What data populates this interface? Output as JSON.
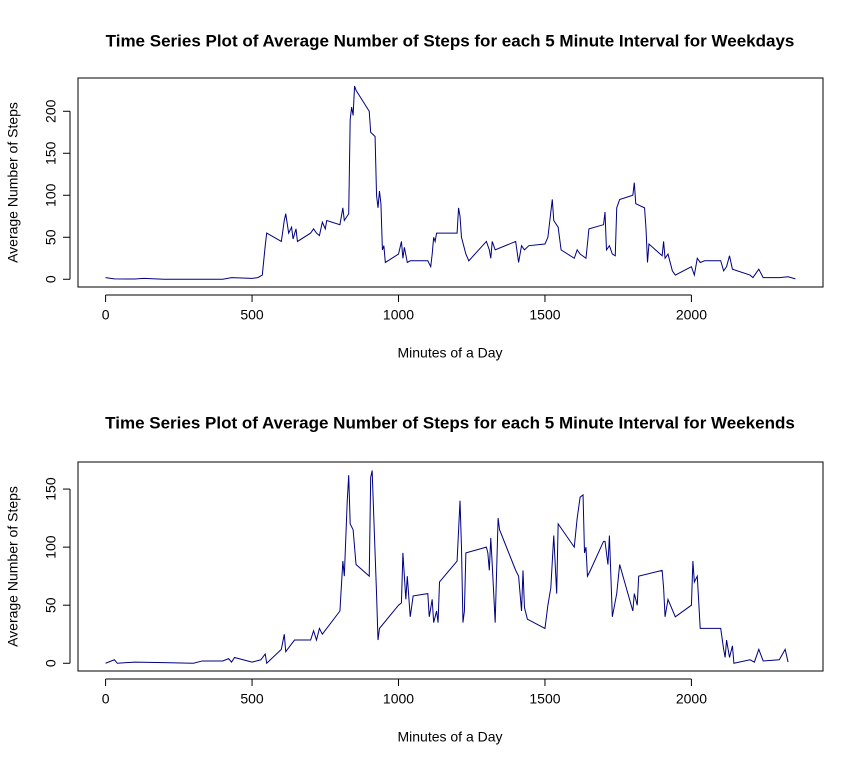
{
  "chart_data": [
    {
      "type": "line",
      "title": "Time Series Plot of Average Number of Steps for each 5 Minute Interval for Weekdays",
      "xlabel": "Minutes of a Day",
      "ylabel": "Average Number of Steps",
      "color": "#000080",
      "xlim": [
        -94.2,
        2449.2
      ],
      "xticks": [
        0,
        500,
        1000,
        1500,
        2000
      ],
      "ylim": [
        -9.2,
        239.6
      ],
      "yticks": [
        0,
        50,
        100,
        150,
        200
      ],
      "x": [
        0,
        30,
        100,
        130,
        200,
        300,
        400,
        430,
        500,
        520,
        535,
        545,
        550,
        600,
        610,
        615,
        625,
        635,
        640,
        650,
        655,
        700,
        710,
        720,
        730,
        740,
        750,
        755,
        800,
        810,
        815,
        830,
        835,
        840,
        845,
        850,
        855,
        900,
        905,
        920,
        925,
        930,
        935,
        940,
        945,
        950,
        955,
        1000,
        1010,
        1015,
        1020,
        1030,
        1040,
        1100,
        1110,
        1115,
        1120,
        1125,
        1130,
        1200,
        1205,
        1210,
        1215,
        1230,
        1240,
        1300,
        1310,
        1315,
        1320,
        1330,
        1400,
        1410,
        1420,
        1430,
        1445,
        1500,
        1510,
        1520,
        1525,
        1530,
        1545,
        1555,
        1600,
        1610,
        1620,
        1640,
        1645,
        1650,
        1700,
        1705,
        1710,
        1720,
        1730,
        1740,
        1745,
        1755,
        1800,
        1805,
        1810,
        1840,
        1845,
        1850,
        1855,
        1900,
        1905,
        1910,
        1920,
        1935,
        1945,
        2000,
        2010,
        2020,
        2030,
        2045,
        2100,
        2110,
        2120,
        2130,
        2140,
        2200,
        2210,
        2230,
        2245,
        2300,
        2330,
        2355
      ],
      "values": [
        2,
        0.5,
        0.3,
        1,
        0,
        0,
        0,
        2,
        1,
        2,
        5,
        40,
        55,
        45,
        70,
        78,
        55,
        62,
        48,
        60,
        45,
        55,
        60,
        55,
        52,
        68,
        60,
        70,
        65,
        85,
        70,
        78,
        190,
        205,
        195,
        230,
        225,
        200,
        175,
        170,
        100,
        85,
        105,
        90,
        35,
        40,
        20,
        30,
        45,
        25,
        38,
        20,
        22,
        22,
        15,
        30,
        50,
        45,
        55,
        55,
        85,
        75,
        50,
        30,
        22,
        45,
        35,
        25,
        45,
        35,
        45,
        20,
        40,
        35,
        40,
        42,
        50,
        80,
        95,
        70,
        62,
        35,
        25,
        35,
        30,
        25,
        42,
        60,
        65,
        80,
        35,
        40,
        30,
        28,
        85,
        95,
        100,
        115,
        90,
        85,
        60,
        20,
        42,
        28,
        45,
        25,
        30,
        10,
        5,
        15,
        5,
        25,
        20,
        22,
        22,
        10,
        15,
        28,
        12,
        5,
        2,
        12,
        2,
        2,
        3,
        0.5
      ]
    },
    {
      "type": "line",
      "title": "Time Series Plot of Average Number of Steps for each 5 Minute Interval for Weekends",
      "xlabel": "Minutes of a Day",
      "ylabel": "Average Number of Steps",
      "color": "#000080",
      "xlim": [
        -94.2,
        2449.2
      ],
      "xticks": [
        0,
        500,
        1000,
        1500,
        2000
      ],
      "ylim": [
        -6.66,
        173.3
      ],
      "yticks": [
        0,
        50,
        100,
        150
      ],
      "x": [
        0,
        30,
        40,
        100,
        200,
        300,
        330,
        400,
        420,
        430,
        440,
        500,
        530,
        545,
        550,
        600,
        610,
        615,
        630,
        645,
        700,
        710,
        720,
        730,
        740,
        800,
        810,
        815,
        825,
        830,
        835,
        845,
        855,
        900,
        905,
        910,
        915,
        925,
        930,
        935,
        1000,
        1010,
        1015,
        1025,
        1030,
        1040,
        1050,
        1100,
        1105,
        1115,
        1120,
        1130,
        1135,
        1140,
        1200,
        1210,
        1215,
        1220,
        1225,
        1230,
        1300,
        1305,
        1310,
        1315,
        1320,
        1330,
        1340,
        1345,
        1400,
        1410,
        1420,
        1425,
        1430,
        1440,
        1500,
        1510,
        1520,
        1530,
        1540,
        1545,
        1600,
        1610,
        1620,
        1630,
        1635,
        1640,
        1645,
        1655,
        1700,
        1705,
        1715,
        1720,
        1730,
        1745,
        1755,
        1800,
        1805,
        1815,
        1820,
        1900,
        1905,
        1910,
        1920,
        1945,
        2000,
        2005,
        2010,
        2020,
        2030,
        2045,
        2100,
        2110,
        2115,
        2120,
        2130,
        2140,
        2145,
        2200,
        2215,
        2230,
        2245,
        2300,
        2320,
        2330
      ],
      "values": [
        0,
        3,
        0,
        1,
        0.5,
        0,
        2,
        2,
        4,
        1,
        5,
        1,
        3,
        8,
        0,
        12,
        25,
        10,
        15,
        20,
        20,
        28,
        20,
        30,
        25,
        45,
        88,
        75,
        140,
        162,
        120,
        115,
        85,
        75,
        160,
        166,
        130,
        60,
        20,
        30,
        50,
        52,
        95,
        55,
        75,
        40,
        58,
        60,
        40,
        55,
        35,
        45,
        35,
        70,
        88,
        140,
        100,
        35,
        45,
        95,
        100,
        95,
        80,
        108,
        85,
        35,
        125,
        115,
        80,
        75,
        45,
        80,
        48,
        38,
        30,
        50,
        65,
        110,
        60,
        120,
        100,
        125,
        143,
        145,
        95,
        100,
        75,
        80,
        105,
        105,
        85,
        110,
        40,
        60,
        85,
        45,
        60,
        50,
        75,
        80,
        65,
        40,
        55,
        40,
        50,
        88,
        70,
        75,
        30,
        30,
        30,
        12,
        5,
        20,
        5,
        15,
        0,
        3,
        1,
        12,
        2,
        3,
        12,
        1
      ]
    }
  ]
}
